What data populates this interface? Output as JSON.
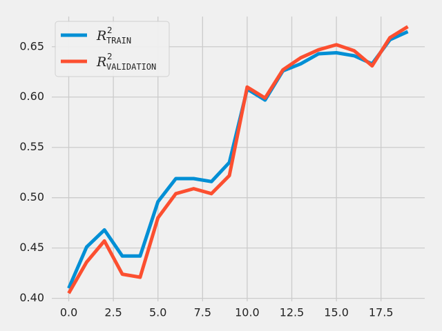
{
  "chart_data": {
    "type": "line",
    "title": "",
    "xlabel": "",
    "ylabel": "",
    "x": [
      0,
      1,
      2,
      3,
      4,
      5,
      6,
      7,
      8,
      9,
      10,
      11,
      12,
      13,
      14,
      15,
      16,
      17,
      18,
      19
    ],
    "xlim": [
      -0.95,
      19.95
    ],
    "ylim": [
      0.397,
      0.68
    ],
    "xticks": [
      0.0,
      2.5,
      5.0,
      7.5,
      10.0,
      12.5,
      15.0,
      17.5
    ],
    "xtick_labels": [
      "0.0",
      "2.5",
      "5.0",
      "7.5",
      "10.0",
      "12.5",
      "15.0",
      "17.5"
    ],
    "yticks": [
      0.4,
      0.45,
      0.5,
      0.55,
      0.6,
      0.65
    ],
    "ytick_labels": [
      "0.40",
      "0.45",
      "0.50",
      "0.55",
      "0.60",
      "0.65"
    ],
    "grid": true,
    "legend_position": "top-left",
    "series": [
      {
        "name": "R",
        "sup": "2",
        "sub": "TRAIN",
        "color": "#008fd5",
        "values": [
          0.41,
          0.451,
          0.468,
          0.442,
          0.442,
          0.496,
          0.519,
          0.519,
          0.516,
          0.535,
          0.608,
          0.597,
          0.626,
          0.633,
          0.643,
          0.644,
          0.641,
          0.633,
          0.657,
          0.665
        ]
      },
      {
        "name": "R",
        "sup": "2",
        "sub": "VALIDATION",
        "color": "#fc4f30",
        "values": [
          0.405,
          0.436,
          0.457,
          0.424,
          0.421,
          0.48,
          0.504,
          0.509,
          0.504,
          0.522,
          0.61,
          0.599,
          0.627,
          0.639,
          0.647,
          0.652,
          0.646,
          0.631,
          0.659,
          0.67
        ]
      }
    ]
  }
}
